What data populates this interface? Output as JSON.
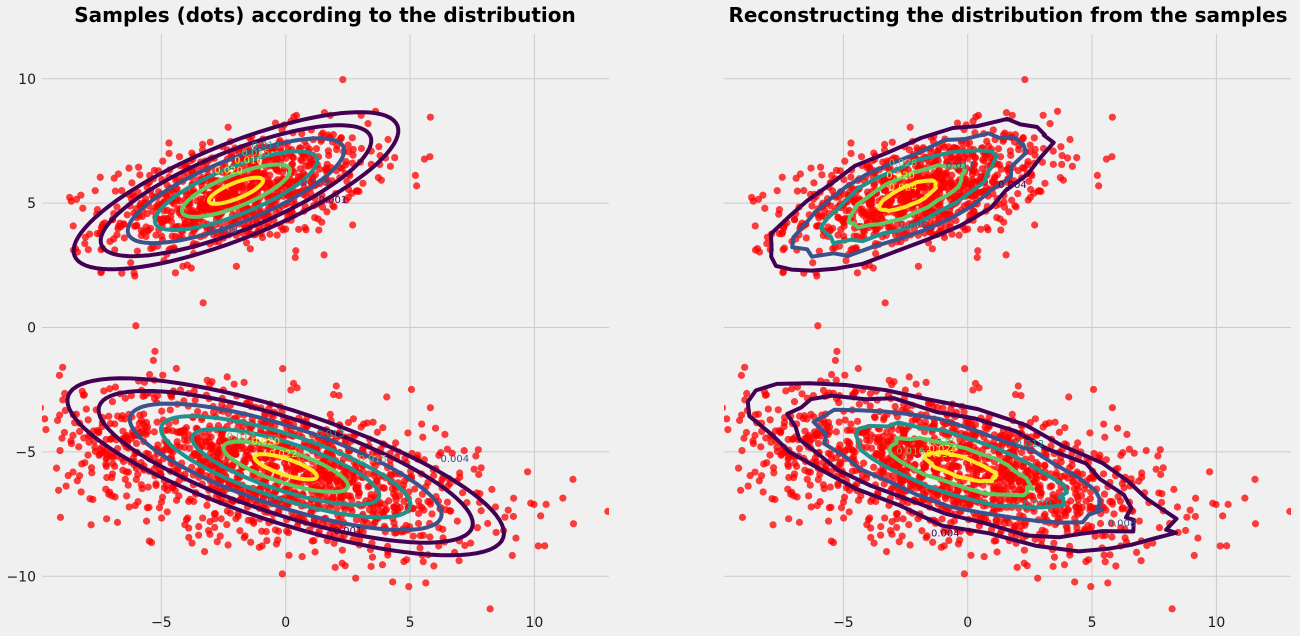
{
  "figure": {
    "background": "#f0f0f0",
    "grid_color": "#cbcbcb",
    "sample_color": "#ff0000",
    "contour_colormap": [
      "#440154",
      "#3b528b",
      "#21918c",
      "#5ec962",
      "#fde725"
    ]
  },
  "chart_data": [
    {
      "type": "scatter",
      "title": "Samples (dots) according to the distribution",
      "xlabel": "",
      "ylabel": "",
      "xlim": [
        -9.8,
        13
      ],
      "ylim": [
        -12,
        11.8
      ],
      "xticks": [
        -5,
        0,
        5,
        10
      ],
      "yticks": [
        -10,
        -5,
        0,
        5,
        10
      ],
      "xtick_labels": [
        "−5",
        "0",
        "5",
        "10"
      ],
      "ytick_labels": [
        "−10",
        "−5",
        "0",
        "5",
        "10"
      ],
      "grid": true,
      "overlay": "contour",
      "clusters": [
        {
          "center": [
            -2,
            5.4
          ],
          "spread": [
            2.6,
            1.2
          ],
          "corr": 0.45,
          "n": 900
        },
        {
          "center": [
            -0.5,
            -5.7
          ],
          "spread": [
            4.2,
            1.6
          ],
          "corr": -0.45,
          "n": 1400
        }
      ],
      "contour_groups": [
        {
          "center": [
            -2,
            5.5
          ],
          "rx": 7,
          "ry": 1.9,
          "angle_deg": 22,
          "levels": 6,
          "jagged": false
        },
        {
          "center": [
            0,
            -5.6
          ],
          "rx": 9.2,
          "ry": 2.25,
          "angle_deg": -18,
          "levels": 7,
          "jagged": false
        }
      ],
      "contour_labels": [
        {
          "text": "0.020",
          "x": -2.3,
          "y": 6.2,
          "color": "#fde725"
        },
        {
          "text": "0.016",
          "x": -1.5,
          "y": 6.6,
          "color": "#fde725"
        },
        {
          "text": "0.015",
          "x": -1.2,
          "y": 6.9,
          "color": "#5ec962"
        },
        {
          "text": "0.013",
          "x": -0.8,
          "y": 7.2,
          "color": "#21918c"
        },
        {
          "text": "0.009",
          "x": 1.2,
          "y": 5.7,
          "color": "#3b528b"
        },
        {
          "text": "0.009",
          "x": -2.5,
          "y": 3.8,
          "color": "#3b528b"
        },
        {
          "text": "0.001",
          "x": 1.9,
          "y": 5.0,
          "color": "#440154"
        },
        {
          "text": "0.020",
          "x": -0.8,
          "y": -4.7,
          "color": "#fde725"
        },
        {
          "text": "0.022",
          "x": -0.1,
          "y": -5.2,
          "color": "#fde725"
        },
        {
          "text": "0.017",
          "x": -1.8,
          "y": -4.5,
          "color": "#5ec962"
        },
        {
          "text": "0.015",
          "x": 3.5,
          "y": -5.4,
          "color": "#5ec962"
        },
        {
          "text": "0.013",
          "x": 1.8,
          "y": -4.4,
          "color": "#21918c"
        },
        {
          "text": "0.004",
          "x": 6.8,
          "y": -5.4,
          "color": "#3b528b"
        },
        {
          "text": "0.010",
          "x": -0.7,
          "y": -7.1,
          "color": "#3b528b"
        },
        {
          "text": "0.001",
          "x": 2.5,
          "y": -8.3,
          "color": "#440154"
        }
      ]
    },
    {
      "type": "scatter",
      "title": "Reconstructing the distribution from the samples",
      "xlabel": "",
      "ylabel": "",
      "xlim": [
        -9.8,
        13
      ],
      "ylim": [
        -12,
        11.8
      ],
      "xticks": [
        -5,
        0,
        5,
        10
      ],
      "yticks": [
        -10,
        -5,
        0,
        5,
        10
      ],
      "xtick_labels": [
        "−5",
        "0",
        "5",
        "10"
      ],
      "ytick_labels": [],
      "grid": true,
      "overlay": "contour",
      "clusters": [
        {
          "center": [
            -2,
            5.4
          ],
          "spread": [
            2.6,
            1.2
          ],
          "corr": 0.45,
          "n": 900
        },
        {
          "center": [
            -0.5,
            -5.7
          ],
          "spread": [
            4.2,
            1.6
          ],
          "corr": -0.45,
          "n": 1400
        }
      ],
      "contour_groups": [
        {
          "center": [
            -2.4,
            5.3
          ],
          "rx": 6.2,
          "ry": 1.9,
          "angle_deg": 24,
          "levels": 5,
          "jagged": true
        },
        {
          "center": [
            -0.3,
            -5.6
          ],
          "rx": 8.8,
          "ry": 2.35,
          "angle_deg": -17,
          "levels": 6,
          "jagged": true
        }
      ],
      "contour_labels": [
        {
          "text": "0.028",
          "x": -2.6,
          "y": 6.5,
          "color": "#5ec962"
        },
        {
          "text": "0.020",
          "x": -2.7,
          "y": 6.0,
          "color": "#fde725"
        },
        {
          "text": "0.024",
          "x": -2.6,
          "y": 5.5,
          "color": "#fde725"
        },
        {
          "text": "0.012",
          "x": -0.3,
          "y": 6.4,
          "color": "#3b528b"
        },
        {
          "text": "0.004",
          "x": 1.8,
          "y": 5.6,
          "color": "#440154"
        },
        {
          "text": "0.008",
          "x": -2.2,
          "y": 4.0,
          "color": "#3b528b"
        },
        {
          "text": "0.028",
          "x": -1.1,
          "y": -4.7,
          "color": "#5ec962"
        },
        {
          "text": "0.024",
          "x": -1.0,
          "y": -5.0,
          "color": "#fde725"
        },
        {
          "text": "0.032",
          "x": -1.1,
          "y": -5.2,
          "color": "#fde725"
        },
        {
          "text": "0.016",
          "x": -2.3,
          "y": -5.1,
          "color": "#5ec962"
        },
        {
          "text": "0.012",
          "x": 2.5,
          "y": -4.8,
          "color": "#21918c"
        },
        {
          "text": "0.020",
          "x": 2.8,
          "y": -7.2,
          "color": "#21918c"
        },
        {
          "text": "0.004",
          "x": -0.9,
          "y": -8.4,
          "color": "#440154"
        },
        {
          "text": "0.008",
          "x": 6.2,
          "y": -8.0,
          "color": "#3b528b"
        }
      ]
    }
  ]
}
